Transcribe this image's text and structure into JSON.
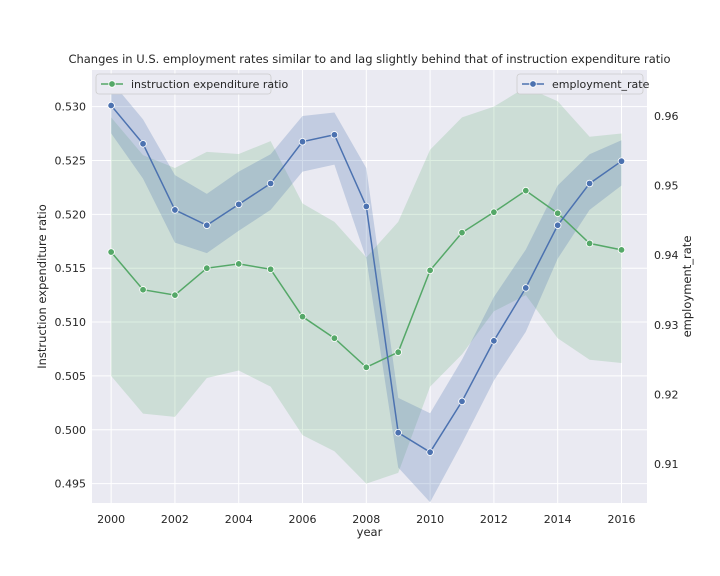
{
  "chart_data": {
    "type": "line",
    "title": "Changes in U.S. employment rates similar to and lag slightly behind that of instruction expenditure ratio",
    "xlabel": "year",
    "ylabel_left": "Instruction expenditure ratio",
    "ylabel_right": "employment_rate",
    "x": [
      2000,
      2001,
      2002,
      2003,
      2004,
      2005,
      2006,
      2007,
      2008,
      2009,
      2010,
      2011,
      2012,
      2013,
      2014,
      2015,
      2016
    ],
    "xlim": [
      1999.4,
      2016.8
    ],
    "xticks": [
      2000,
      2002,
      2004,
      2006,
      2008,
      2010,
      2012,
      2014,
      2016
    ],
    "xtick_labels": [
      "2000",
      "2002",
      "2004",
      "2006",
      "2008",
      "2010",
      "2012",
      "2014",
      "2016"
    ],
    "ylim_left": [
      0.4932,
      0.5334
    ],
    "yticks_left": [
      0.495,
      0.5,
      0.505,
      0.51,
      0.515,
      0.52,
      0.525,
      0.53
    ],
    "ytick_labels_left": [
      "0.495",
      "0.500",
      "0.505",
      "0.510",
      "0.515",
      "0.520",
      "0.525",
      "0.530"
    ],
    "ylim_right": [
      0.9044,
      0.9666
    ],
    "yticks_right": [
      0.91,
      0.92,
      0.93,
      0.94,
      0.95,
      0.96
    ],
    "ytick_labels_right": [
      "0.91",
      "0.92",
      "0.93",
      "0.94",
      "0.95",
      "0.96"
    ],
    "grid": true,
    "background": "#eaeaf2",
    "series": [
      {
        "name": "instruction expenditure ratio",
        "axis": "left",
        "color": "#55a868",
        "legend_position": "top-left",
        "values": [
          0.5165,
          0.513,
          0.5125,
          0.515,
          0.5154,
          0.5149,
          0.5105,
          0.5085,
          0.5058,
          0.5072,
          0.5148,
          0.5183,
          0.5202,
          0.5222,
          0.5201,
          0.5173,
          0.5167
        ],
        "ci_low": [
          0.505,
          0.5015,
          0.5012,
          0.5048,
          0.5055,
          0.504,
          0.4995,
          0.498,
          0.495,
          0.496,
          0.504,
          0.507,
          0.511,
          0.5125,
          0.5085,
          0.5065,
          0.5062
        ],
        "ci_high": [
          0.529,
          0.5255,
          0.5243,
          0.5258,
          0.5256,
          0.5268,
          0.521,
          0.5193,
          0.516,
          0.5193,
          0.526,
          0.529,
          0.53,
          0.5318,
          0.5305,
          0.5272,
          0.5275
        ]
      },
      {
        "name": "employment_rate",
        "axis": "right",
        "color": "#4c72b0",
        "legend_position": "top-right",
        "values": [
          0.9615,
          0.956,
          0.9465,
          0.9443,
          0.9473,
          0.9503,
          0.9563,
          0.9573,
          0.947,
          0.9145,
          0.9117,
          0.919,
          0.9277,
          0.9353,
          0.9443,
          0.9503,
          0.9535
        ],
        "ci_low": [
          0.9575,
          0.951,
          0.9418,
          0.9403,
          0.9435,
          0.9465,
          0.952,
          0.953,
          0.9395,
          0.9095,
          0.9045,
          0.913,
          0.922,
          0.929,
          0.9395,
          0.9465,
          0.95
        ],
        "ci_high": [
          0.965,
          0.9595,
          0.9515,
          0.9488,
          0.952,
          0.9545,
          0.96,
          0.9605,
          0.9525,
          0.9195,
          0.9173,
          0.925,
          0.934,
          0.9408,
          0.95,
          0.9545,
          0.9565
        ]
      }
    ]
  }
}
